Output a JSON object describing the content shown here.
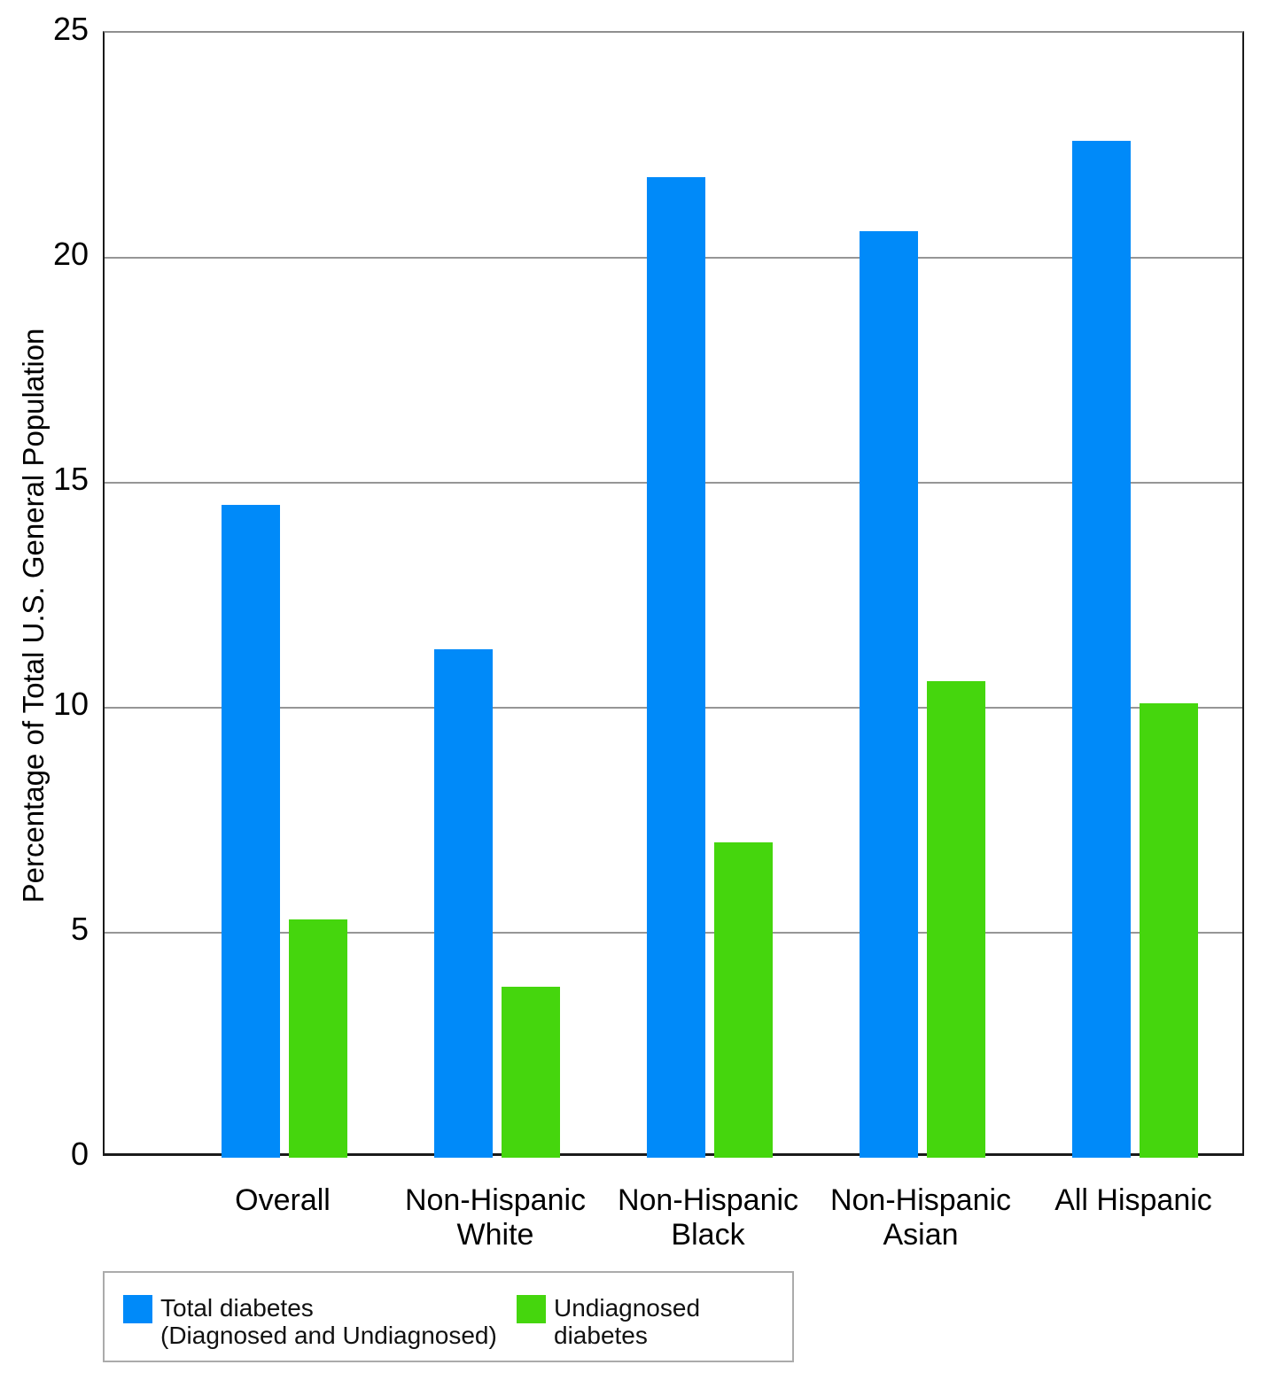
{
  "chart_data": {
    "type": "bar",
    "title": "",
    "xlabel": "",
    "ylabel": "Percentage of Total U.S. General Population",
    "ylim": [
      0,
      25
    ],
    "yticks": [
      0,
      5,
      10,
      15,
      20,
      25
    ],
    "grid": "horizontal-only",
    "legend_position": "bottom-left-boxed",
    "categories": [
      "Overall",
      "Non-Hispanic White",
      "Non-Hispanic Black",
      "Non-Hispanic Asian",
      "All Hispanic"
    ],
    "category_label_lines": [
      [
        "Overall"
      ],
      [
        "Non-Hispanic",
        "White"
      ],
      [
        "Non-Hispanic",
        "Black"
      ],
      [
        "Non-Hispanic",
        "Asian"
      ],
      [
        "All Hispanic"
      ]
    ],
    "series": [
      {
        "name": "Total diabetes",
        "sublabel": "(Diagnosed and Undiagnosed)",
        "color": "#008AF9",
        "values": [
          14.5,
          11.3,
          21.8,
          20.6,
          22.6
        ]
      },
      {
        "name": "Undiagnosed diabetes",
        "sublabel": "",
        "color": "#45D60D",
        "values": [
          5.3,
          3.8,
          7.0,
          10.6,
          10.1
        ]
      }
    ],
    "axis_color": "#1a1a1a",
    "gridline_color": "#969696"
  }
}
